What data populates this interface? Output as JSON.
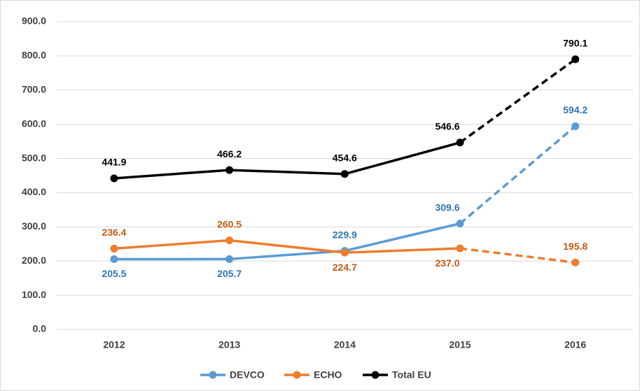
{
  "chart_data": {
    "type": "line",
    "categories": [
      "2012",
      "2013",
      "2014",
      "2015",
      "2016"
    ],
    "series": [
      {
        "name": "DEVCO",
        "color": "#5b9bd5",
        "label_color": "#2e75b6",
        "values": [
          205.5,
          205.7,
          229.9,
          309.6,
          594.2
        ],
        "value_labels": [
          "205.5",
          "205.7",
          "229.9",
          "309.6",
          "594.2"
        ]
      },
      {
        "name": "ECHO",
        "color": "#ed7d31",
        "label_color": "#c55a11",
        "values": [
          236.4,
          260.5,
          224.7,
          237.0,
          195.8
        ],
        "value_labels": [
          "236.4",
          "260.5",
          "224.7",
          "237.0",
          "195.8"
        ]
      },
      {
        "name": "Total EU",
        "color": "#000000",
        "label_color": "#000000",
        "values": [
          441.9,
          466.2,
          454.6,
          546.6,
          790.1
        ],
        "value_labels": [
          "441.9",
          "466.2",
          "454.6",
          "546.6",
          "790.1"
        ]
      }
    ],
    "dashed_from": 3,
    "ylim": [
      0,
      900
    ],
    "yticks": [
      {
        "value": 0,
        "label": "0.0"
      },
      {
        "value": 100,
        "label": "100.0"
      },
      {
        "value": 200,
        "label": "200.0"
      },
      {
        "value": 300,
        "label": "300.0"
      },
      {
        "value": 400,
        "label": "400.0"
      },
      {
        "value": 500,
        "label": "500.0"
      },
      {
        "value": 600,
        "label": "600.0"
      },
      {
        "value": 700,
        "label": "700.0"
      },
      {
        "value": 800,
        "label": "800.0"
      },
      {
        "value": 900,
        "label": "900.0"
      }
    ],
    "grid": true,
    "legend": "bottom"
  }
}
